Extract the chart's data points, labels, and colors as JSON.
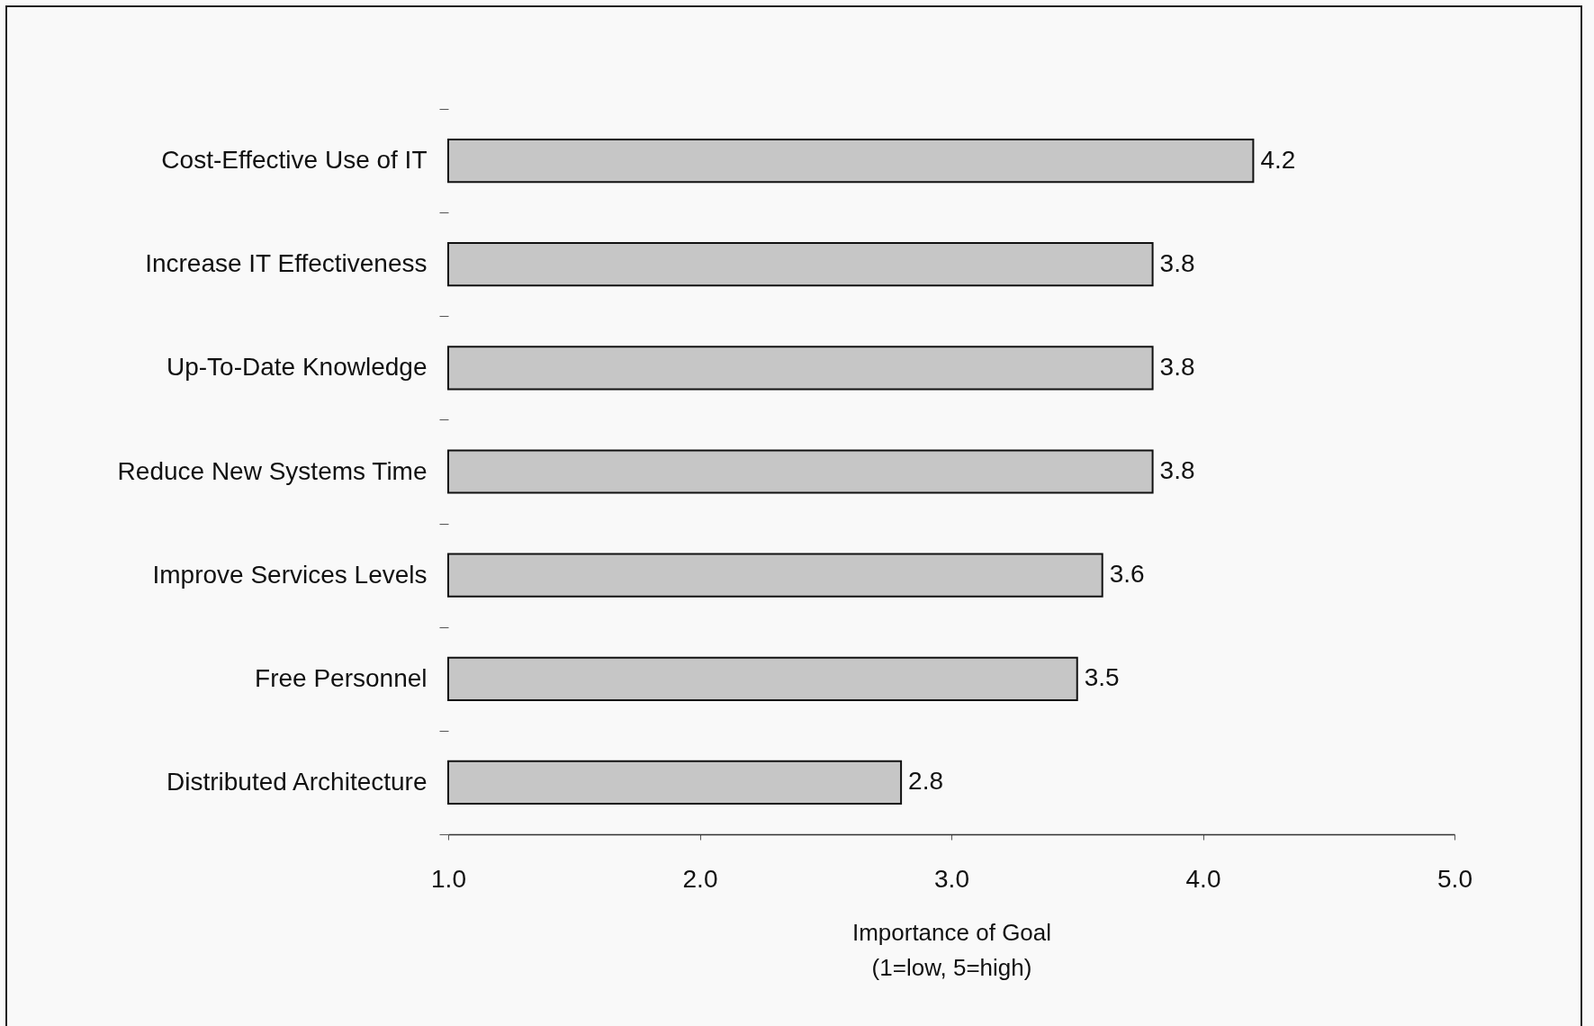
{
  "chart_data": {
    "type": "bar",
    "orientation": "horizontal",
    "categories": [
      "Cost-Effective Use of IT",
      "Increase IT Effectiveness",
      "Up-To-Date Knowledge",
      "Reduce New Systems Time",
      "Improve Services Levels",
      "Free Personnel",
      "Distributed Architecture"
    ],
    "values": [
      4.2,
      3.8,
      3.8,
      3.8,
      3.6,
      3.5,
      2.8
    ],
    "color": "#c6c6c6",
    "xlim": [
      1,
      5
    ],
    "xticks": [
      {
        "value": 1,
        "label": "1.0"
      },
      {
        "value": 2,
        "label": "2.0"
      },
      {
        "value": 3,
        "label": "3.0"
      },
      {
        "value": 4,
        "label": "4.0"
      },
      {
        "value": 5,
        "label": "5.0"
      }
    ],
    "xlabel": "Importance of Goal\n(1=low, 5=high)",
    "data_labels": true
  }
}
